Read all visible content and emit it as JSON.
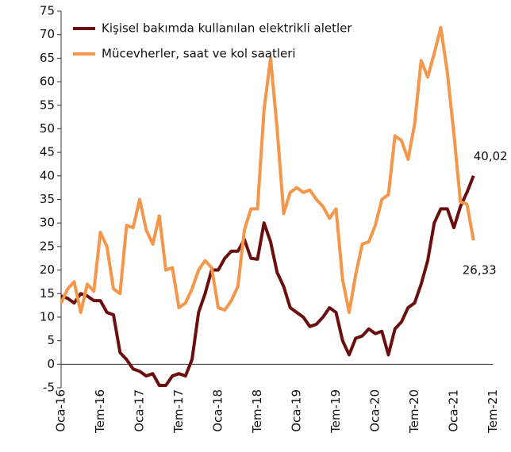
{
  "chart_data": {
    "type": "line",
    "categories": [
      "Oca-16",
      null,
      null,
      null,
      null,
      null,
      "Tem-16",
      null,
      null,
      null,
      null,
      null,
      "Oca-17",
      null,
      null,
      null,
      null,
      null,
      "Tem-17",
      null,
      null,
      null,
      null,
      null,
      "Oca-18",
      null,
      null,
      null,
      null,
      null,
      "Tem-18",
      null,
      null,
      null,
      null,
      null,
      "Oca-19",
      null,
      null,
      null,
      null,
      null,
      "Tem-19",
      null,
      null,
      null,
      null,
      null,
      "Oca-20",
      null,
      null,
      null,
      null,
      null,
      "Tem-20",
      null,
      null,
      null,
      null,
      null,
      "Oca-21",
      null,
      null,
      null,
      null,
      null,
      "Tem-21"
    ],
    "series": [
      {
        "name": "Kişisel bakımda kullanılan elektrikli aletler",
        "color": "#6b0e0e",
        "values": [
          14.5,
          14,
          13,
          15,
          14.5,
          13.5,
          13.5,
          11,
          10.5,
          2.5,
          1,
          -1,
          -1.5,
          -2.5,
          -2,
          -4.5,
          -4.5,
          -2.5,
          -2,
          -2.5,
          1,
          11,
          15,
          20,
          20,
          22.5,
          24,
          24,
          26.5,
          22.5,
          22.3,
          30,
          26,
          19.5,
          16.5,
          12,
          11,
          10,
          8,
          8.5,
          10,
          12,
          11,
          5,
          2,
          5.5,
          6,
          7.5,
          6.5,
          7,
          2,
          7.5,
          9,
          12,
          13,
          17,
          22,
          30,
          33,
          33,
          29,
          33.5,
          36.5,
          40.02,
          null,
          null,
          null
        ],
        "value_labels": [
          null,
          null,
          null,
          null,
          null,
          null,
          null,
          null,
          null,
          null,
          null,
          null,
          null,
          null,
          null,
          null,
          null,
          null,
          null,
          null,
          null,
          null,
          null,
          null,
          null,
          null,
          null,
          null,
          null,
          null,
          null,
          null,
          null,
          null,
          null,
          null,
          null,
          null,
          null,
          null,
          null,
          null,
          null,
          null,
          null,
          null,
          null,
          null,
          null,
          null,
          null,
          null,
          null,
          null,
          null,
          null,
          null,
          null,
          null,
          null,
          null,
          null,
          null,
          "40,02",
          null,
          null,
          null
        ]
      },
      {
        "name": "Mücevherler, saat ve kol saatleri",
        "color": "#f4974a",
        "values": [
          13,
          16,
          17.5,
          11,
          17,
          15.5,
          28,
          25,
          16,
          15,
          29.5,
          29,
          35,
          28.5,
          25.5,
          31.5,
          20,
          20.5,
          12,
          13,
          16,
          20,
          22,
          20.5,
          12,
          11.5,
          13.5,
          16.5,
          28.5,
          33,
          33,
          54,
          65,
          50,
          32,
          36.5,
          37.5,
          36.5,
          37,
          35,
          33.5,
          31,
          33,
          18,
          11,
          19,
          25.5,
          26,
          29.5,
          35,
          36,
          48.5,
          47.5,
          43.5,
          51,
          64.5,
          61,
          66,
          71.5,
          62,
          49,
          34.5,
          34,
          26.33,
          null,
          null,
          null
        ],
        "value_labels": [
          null,
          null,
          null,
          null,
          null,
          null,
          null,
          null,
          null,
          null,
          null,
          null,
          null,
          null,
          null,
          null,
          null,
          null,
          null,
          null,
          null,
          null,
          null,
          null,
          null,
          null,
          null,
          null,
          null,
          null,
          null,
          null,
          null,
          null,
          null,
          null,
          null,
          null,
          null,
          null,
          null,
          null,
          null,
          null,
          null,
          null,
          null,
          null,
          null,
          null,
          null,
          null,
          null,
          null,
          null,
          null,
          null,
          null,
          null,
          null,
          null,
          null,
          null,
          "26,33",
          null,
          null,
          null
        ]
      }
    ],
    "ylim": [
      -5,
      75
    ],
    "yticks": [
      -5,
      0,
      5,
      10,
      15,
      20,
      25,
      30,
      35,
      40,
      45,
      50,
      55,
      60,
      65,
      70,
      75
    ],
    "legend": "upper left"
  }
}
